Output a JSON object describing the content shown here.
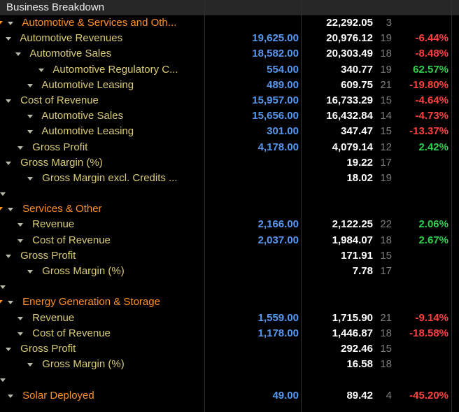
{
  "header": {
    "title": "Business Breakdown"
  },
  "colors": {
    "background": "#000000",
    "titlebar_bg": "#272727",
    "section_orange": "#ff9023",
    "item_yellow": "#d9cb74",
    "actual_blue": "#5697f2",
    "estimate_white": "#ffffff",
    "count_gray": "#7d7d7d",
    "negative_red": "#ff4040",
    "positive_green": "#2fcf4f"
  },
  "columns": [
    "label",
    "actual",
    "estimate",
    "count",
    "pct_diff"
  ],
  "rows": [
    {
      "label": "Automotive & Services and Oth...",
      "level": 0,
      "section": true,
      "edge_caret": true,
      "caret": false,
      "actual": "",
      "estimate": "22,292.05",
      "count": "3",
      "pct": "",
      "pct_color": ""
    },
    {
      "label": "Automotive Revenues",
      "level": 1,
      "section": false,
      "edge_caret": false,
      "caret": true,
      "actual": "19,625.00",
      "estimate": "20,976.12",
      "count": "19",
      "pct": "-6.44%",
      "pct_color": "red"
    },
    {
      "label": "Automotive Sales",
      "level": 2,
      "section": false,
      "edge_caret": false,
      "caret": true,
      "actual": "18,582.00",
      "estimate": "20,303.49",
      "count": "18",
      "pct": "-8.48%",
      "pct_color": "red"
    },
    {
      "label": "Automotive Regulatory C...",
      "level": 3,
      "section": false,
      "edge_caret": false,
      "caret": false,
      "actual": "554.00",
      "estimate": "340.77",
      "count": "19",
      "pct": "62.57%",
      "pct_color": "green"
    },
    {
      "label": "Automotive Leasing",
      "level": 2,
      "section": false,
      "edge_caret": false,
      "caret": false,
      "actual": "489.00",
      "estimate": "609.75",
      "count": "21",
      "pct": "-19.80%",
      "pct_color": "red"
    },
    {
      "label": "Cost of Revenue",
      "level": 1,
      "section": false,
      "edge_caret": false,
      "caret": true,
      "actual": "15,957.00",
      "estimate": "16,733.29",
      "count": "15",
      "pct": "-4.64%",
      "pct_color": "red"
    },
    {
      "label": "Automotive Sales",
      "level": 2,
      "section": false,
      "edge_caret": false,
      "caret": false,
      "actual": "15,656.00",
      "estimate": "16,432.84",
      "count": "14",
      "pct": "-4.73%",
      "pct_color": "red"
    },
    {
      "label": "Automotive Leasing",
      "level": 2,
      "section": false,
      "edge_caret": false,
      "caret": false,
      "actual": "301.00",
      "estimate": "347.47",
      "count": "15",
      "pct": "-13.37%",
      "pct_color": "red"
    },
    {
      "label": "Gross Profit",
      "level": 1,
      "section": false,
      "edge_caret": false,
      "caret": false,
      "actual": "4,178.00",
      "estimate": "4,079.14",
      "count": "12",
      "pct": "2.42%",
      "pct_color": "green"
    },
    {
      "label": "Gross Margin (%)",
      "level": 1,
      "section": false,
      "edge_caret": false,
      "caret": true,
      "actual": "",
      "estimate": "19.22",
      "count": "17",
      "pct": "",
      "pct_color": ""
    },
    {
      "label": "Gross Margin excl. Credits ...",
      "level": 2,
      "section": false,
      "edge_caret": false,
      "caret": false,
      "actual": "",
      "estimate": "18.02",
      "count": "19",
      "pct": "",
      "pct_color": ""
    },
    {
      "blank": true
    },
    {
      "label": "Services & Other",
      "level": 0,
      "section": true,
      "edge_caret": true,
      "caret": false,
      "actual": "",
      "estimate": "",
      "count": "",
      "pct": "",
      "pct_color": ""
    },
    {
      "label": "Revenue",
      "level": 1,
      "section": false,
      "edge_caret": false,
      "caret": false,
      "actual": "2,166.00",
      "estimate": "2,122.25",
      "count": "22",
      "pct": "2.06%",
      "pct_color": "green"
    },
    {
      "label": "Cost of Revenue",
      "level": 1,
      "section": false,
      "edge_caret": false,
      "caret": false,
      "actual": "2,037.00",
      "estimate": "1,984.07",
      "count": "18",
      "pct": "2.67%",
      "pct_color": "green"
    },
    {
      "label": "Gross Profit",
      "level": 1,
      "section": false,
      "edge_caret": false,
      "caret": true,
      "actual": "",
      "estimate": "171.91",
      "count": "15",
      "pct": "",
      "pct_color": ""
    },
    {
      "label": "Gross Margin (%)",
      "level": 2,
      "section": false,
      "edge_caret": false,
      "caret": false,
      "actual": "",
      "estimate": "7.78",
      "count": "17",
      "pct": "",
      "pct_color": ""
    },
    {
      "blank": true
    },
    {
      "label": "Energy Generation & Storage",
      "level": 0,
      "section": true,
      "edge_caret": true,
      "caret": false,
      "actual": "",
      "estimate": "",
      "count": "",
      "pct": "",
      "pct_color": ""
    },
    {
      "label": "Revenue",
      "level": 1,
      "section": false,
      "edge_caret": false,
      "caret": false,
      "actual": "1,559.00",
      "estimate": "1,715.90",
      "count": "21",
      "pct": "-9.14%",
      "pct_color": "red"
    },
    {
      "label": "Cost of Revenue",
      "level": 1,
      "section": false,
      "edge_caret": false,
      "caret": false,
      "actual": "1,178.00",
      "estimate": "1,446.87",
      "count": "18",
      "pct": "-18.58%",
      "pct_color": "red"
    },
    {
      "label": "Gross Profit",
      "level": 1,
      "section": false,
      "edge_caret": false,
      "caret": true,
      "actual": "",
      "estimate": "292.46",
      "count": "15",
      "pct": "",
      "pct_color": ""
    },
    {
      "label": "Gross Margin (%)",
      "level": 2,
      "section": false,
      "edge_caret": false,
      "caret": false,
      "actual": "",
      "estimate": "16.58",
      "count": "18",
      "pct": "",
      "pct_color": ""
    },
    {
      "blank": true
    },
    {
      "label": "Solar Deployed",
      "level": 0,
      "section": true,
      "edge_caret": false,
      "caret": false,
      "actual": "49.00",
      "estimate": "89.42",
      "count": "4",
      "pct": "-45.20%",
      "pct_color": "red"
    }
  ]
}
